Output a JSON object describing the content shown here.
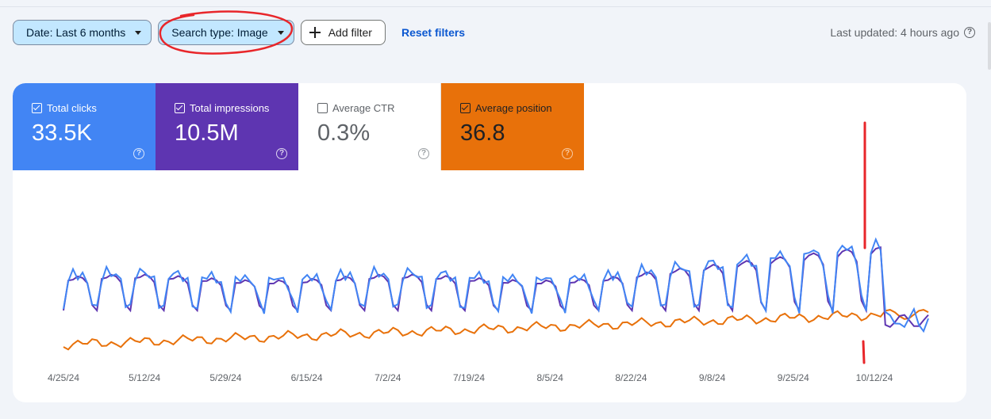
{
  "filters": {
    "date_label": "Date: Last 6 months",
    "search_type_label": "Search type: Image",
    "add_filter_label": "Add filter",
    "reset_label": "Reset filters"
  },
  "status": {
    "last_updated": "Last updated: 4 hours ago"
  },
  "metrics": [
    {
      "id": "clicks",
      "label": "Total clicks",
      "value": "33.5K",
      "checked": true,
      "color": "#4285f4"
    },
    {
      "id": "impressions",
      "label": "Total impressions",
      "value": "10.5M",
      "checked": true,
      "color": "#5e35b1"
    },
    {
      "id": "ctr",
      "label": "Average CTR",
      "value": "0.3%",
      "checked": false,
      "color": "#ffffff"
    },
    {
      "id": "position",
      "label": "Average position",
      "value": "36.8",
      "checked": true,
      "color": "#e8710a"
    }
  ],
  "icons": {
    "help": "help-circle-icon",
    "add": "plus-icon",
    "dropdown": "caret-down-icon",
    "checkbox": "checkbox-icon"
  },
  "annotation_color": "#e8262a",
  "chart_data": {
    "type": "line",
    "x_tick_labels": [
      "4/25/24",
      "5/12/24",
      "5/29/24",
      "6/15/24",
      "7/2/24",
      "7/19/24",
      "8/5/24",
      "8/22/24",
      "9/8/24",
      "9/25/24",
      "10/12/24"
    ],
    "x_start": "4/25/24",
    "x_end": "10/23/24",
    "series": [
      {
        "name": "Total clicks",
        "color": "#4285f4"
      },
      {
        "name": "Total impressions",
        "color": "#5e35b1"
      },
      {
        "name": "Average position",
        "color": "#e8710a"
      }
    ],
    "grid": false,
    "legend": "metric tiles (top-left)"
  }
}
